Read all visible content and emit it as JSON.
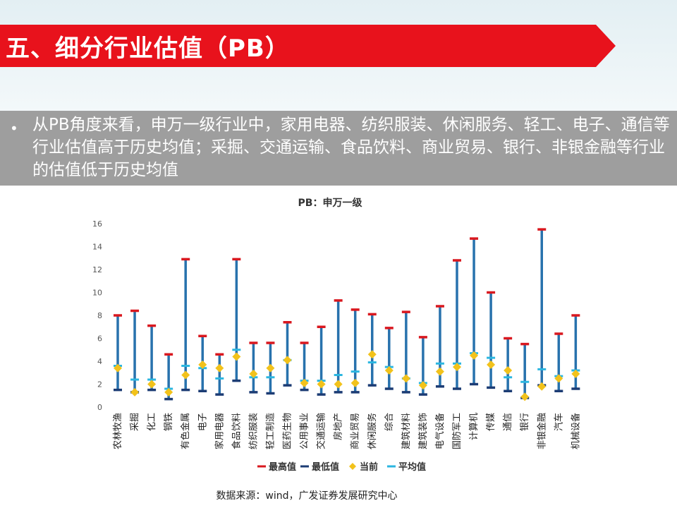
{
  "header": {
    "title": "五、细分行业估值（PB）"
  },
  "bullet": {
    "text": "从PB角度来看，申万一级行业中，家用电器、纺织服装、休闲服务、轻工、电子、通信等行业估值高于历史均值；采掘、交通运输、食品饮料、商业贸易、银行、非银金融等行业的估值低于历史均值"
  },
  "colors": {
    "banner": "#e8121c",
    "max": "#d9181f",
    "min": "#1c3c74",
    "current": "#f2c21b",
    "avg": "#2bb6e0",
    "bar": "#2872ad"
  },
  "chart_data": {
    "type": "bar",
    "title": "PB：申万一级",
    "ylim": [
      0,
      16
    ],
    "yticks": [
      0,
      2,
      4,
      6,
      8,
      10,
      12,
      14,
      16
    ],
    "categories": [
      "农林牧渔",
      "采掘",
      "化工",
      "钢铁",
      "有色金属",
      "电子",
      "家用电器",
      "食品饮料",
      "纺织服装",
      "轻工制造",
      "医药生物",
      "公用事业",
      "交通运输",
      "房地产",
      "商业贸易",
      "休闲服务",
      "综合",
      "建筑材料",
      "建筑装饰",
      "电气设备",
      "国防军工",
      "计算机",
      "传媒",
      "通信",
      "银行",
      "非银金融",
      "汽车",
      "机械设备"
    ],
    "series": [
      {
        "name": "最高值",
        "values": [
          8.0,
          8.4,
          7.1,
          4.6,
          12.9,
          6.2,
          4.6,
          12.9,
          5.6,
          5.6,
          7.4,
          5.6,
          7.0,
          9.3,
          8.5,
          8.1,
          6.9,
          8.3,
          6.1,
          8.8,
          12.8,
          14.7,
          10.0,
          6.0,
          5.5,
          15.5,
          6.4,
          8.0
        ]
      },
      {
        "name": "最低值",
        "values": [
          1.5,
          1.3,
          1.5,
          0.7,
          1.5,
          1.4,
          1.1,
          2.3,
          1.3,
          1.2,
          1.9,
          1.5,
          1.1,
          1.3,
          1.3,
          1.9,
          1.6,
          1.3,
          1.1,
          1.8,
          1.6,
          2.0,
          1.7,
          1.4,
          0.8,
          1.9,
          1.4,
          1.6
        ]
      },
      {
        "name": "当前",
        "values": [
          3.4,
          1.3,
          2.0,
          1.3,
          2.8,
          3.7,
          3.4,
          4.4,
          2.9,
          3.4,
          4.1,
          2.1,
          2.0,
          2.0,
          2.1,
          4.6,
          3.2,
          2.5,
          1.9,
          3.1,
          3.5,
          4.5,
          3.7,
          3.2,
          0.9,
          1.8,
          2.5,
          2.9
        ]
      },
      {
        "name": "平均值",
        "values": [
          3.6,
          2.4,
          2.4,
          1.6,
          3.6,
          3.4,
          2.5,
          5.0,
          2.6,
          2.6,
          4.1,
          2.3,
          2.3,
          2.8,
          3.1,
          3.9,
          3.5,
          2.5,
          2.1,
          3.8,
          3.8,
          4.7,
          4.3,
          2.6,
          2.2,
          3.3,
          2.7,
          3.2
        ]
      }
    ]
  },
  "source": {
    "text": "数据来源：wind，广发证券发展研究中心"
  }
}
